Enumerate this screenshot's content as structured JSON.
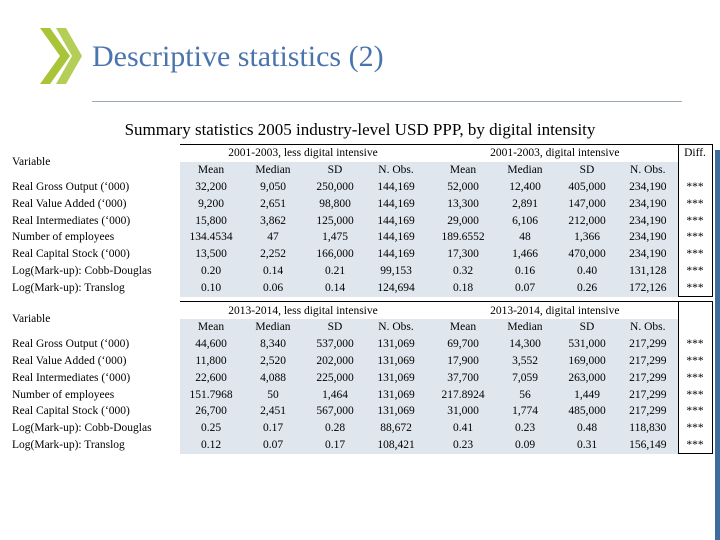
{
  "slide": {
    "title": "Descriptive statistics (2)",
    "subtitle": "Summary statistics 2005 industry-level USD PPP, by digital intensity",
    "accent_color": "#4a74ad",
    "logo_color": "#a8c53a"
  },
  "table": {
    "variable_header": "Variable",
    "diff_header": "Diff.",
    "column_labels": [
      "Mean",
      "Median",
      "SD",
      "N. Obs."
    ],
    "variables": [
      "Real Gross Output (‘000)",
      "Real Value Added (‘000)",
      "Real Intermediates (‘000)",
      "Number of employees",
      "Real Capital Stock (‘000)",
      "Log(Mark-up): Cobb-Douglas",
      "Log(Mark-up): Translog"
    ],
    "blocks": [
      {
        "group_less": "2001-2003, less digital intensive",
        "group_digital": "2001-2003, digital intensive",
        "rows": [
          {
            "less": [
              "32,200",
              "9,050",
              "250,000",
              "144,169"
            ],
            "digital": [
              "52,000",
              "12,400",
              "405,000",
              "234,190"
            ],
            "diff": "***"
          },
          {
            "less": [
              "9,200",
              "2,651",
              "98,800",
              "144,169"
            ],
            "digital": [
              "13,300",
              "2,891",
              "147,000",
              "234,190"
            ],
            "diff": "***"
          },
          {
            "less": [
              "15,800",
              "3,862",
              "125,000",
              "144,169"
            ],
            "digital": [
              "29,000",
              "6,106",
              "212,000",
              "234,190"
            ],
            "diff": "***"
          },
          {
            "less": [
              "134.4534",
              "47",
              "1,475",
              "144,169"
            ],
            "digital": [
              "189.6552",
              "48",
              "1,366",
              "234,190"
            ],
            "diff": "***"
          },
          {
            "less": [
              "13,500",
              "2,252",
              "166,000",
              "144,169"
            ],
            "digital": [
              "17,300",
              "1,466",
              "470,000",
              "234,190"
            ],
            "diff": "***"
          },
          {
            "less": [
              "0.20",
              "0.14",
              "0.21",
              "99,153"
            ],
            "digital": [
              "0.32",
              "0.16",
              "0.40",
              "131,128"
            ],
            "diff": "***"
          },
          {
            "less": [
              "0.10",
              "0.06",
              "0.14",
              "124,694"
            ],
            "digital": [
              "0.18",
              "0.07",
              "0.26",
              "172,126"
            ],
            "diff": "***"
          }
        ]
      },
      {
        "group_less": "2013-2014, less digital intensive",
        "group_digital": "2013-2014, digital intensive",
        "rows": [
          {
            "less": [
              "44,600",
              "8,340",
              "537,000",
              "131,069"
            ],
            "digital": [
              "69,700",
              "14,300",
              "531,000",
              "217,299"
            ],
            "diff": "***"
          },
          {
            "less": [
              "11,800",
              "2,520",
              "202,000",
              "131,069"
            ],
            "digital": [
              "17,900",
              "3,552",
              "169,000",
              "217,299"
            ],
            "diff": "***"
          },
          {
            "less": [
              "22,600",
              "4,088",
              "225,000",
              "131,069"
            ],
            "digital": [
              "37,700",
              "7,059",
              "263,000",
              "217,299"
            ],
            "diff": "***"
          },
          {
            "less": [
              "151.7968",
              "50",
              "1,464",
              "131,069"
            ],
            "digital": [
              "217.8924",
              "56",
              "1,449",
              "217,299"
            ],
            "diff": "***"
          },
          {
            "less": [
              "26,700",
              "2,451",
              "567,000",
              "131,069"
            ],
            "digital": [
              "31,000",
              "1,774",
              "485,000",
              "217,299"
            ],
            "diff": "***"
          },
          {
            "less": [
              "0.25",
              "0.17",
              "0.28",
              "88,672"
            ],
            "digital": [
              "0.41",
              "0.23",
              "0.48",
              "118,830"
            ],
            "diff": "***"
          },
          {
            "less": [
              "0.12",
              "0.07",
              "0.17",
              "108,421"
            ],
            "digital": [
              "0.23",
              "0.09",
              "0.31",
              "156,149"
            ],
            "diff": "***"
          }
        ]
      }
    ]
  }
}
